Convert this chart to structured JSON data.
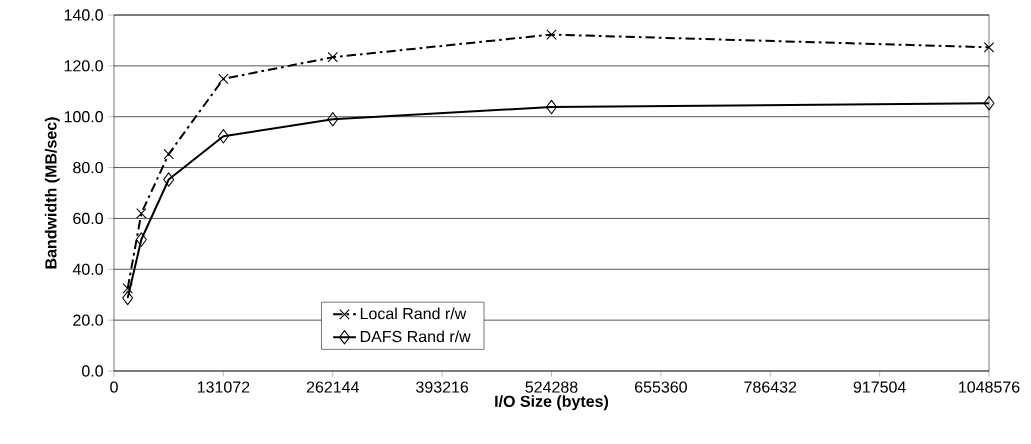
{
  "chart_data": {
    "type": "line",
    "xlabel": "I/O Size (bytes)",
    "ylabel": "Bandwidth (MB/sec)",
    "x": [
      16384,
      32768,
      65536,
      131072,
      262144,
      524288,
      1048576
    ],
    "series": [
      {
        "name": "Local Rand r/w",
        "color": "#000000",
        "marker": "cross",
        "line_style": "dashed",
        "values": [
          32.5,
          62,
          85.3,
          114.9,
          123.4,
          132.3,
          127.3
        ]
      },
      {
        "name": "DAFS Rand r/w",
        "color": "#000000",
        "marker": "diamond",
        "line_style": "solid",
        "values": [
          28.7,
          51.7,
          75.3,
          92.3,
          99.0,
          103.8,
          105.3
        ]
      }
    ],
    "xlim": [
      0,
      1048576
    ],
    "xticks": [
      0,
      131072,
      262144,
      393216,
      524288,
      655360,
      786432,
      917504,
      1048576
    ],
    "ylim": [
      0,
      140
    ],
    "yticks": [
      {
        "value": 0,
        "label": "0.0"
      },
      {
        "value": 20,
        "label": "20.0"
      },
      {
        "value": 40,
        "label": "40.0"
      },
      {
        "value": 60,
        "label": "60.0"
      },
      {
        "value": 80,
        "label": "80.0"
      },
      {
        "value": 100,
        "label": "100.0"
      },
      {
        "value": 120,
        "label": "120.0"
      },
      {
        "value": 140,
        "label": "140.0"
      }
    ],
    "grid": "y",
    "legend": "bottom"
  }
}
